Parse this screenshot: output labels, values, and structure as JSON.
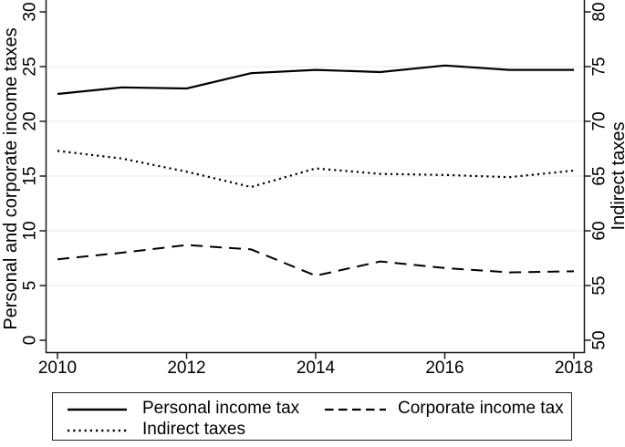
{
  "chart_data": {
    "type": "line",
    "x": [
      2010,
      2011,
      2012,
      2013,
      2014,
      2015,
      2016,
      2017,
      2018
    ],
    "series": [
      {
        "name": "Personal income tax",
        "axis": "left",
        "style": "solid",
        "values": [
          22.5,
          23.1,
          23.0,
          24.4,
          24.7,
          24.5,
          25.1,
          24.7,
          24.7
        ]
      },
      {
        "name": "Corporate income tax",
        "axis": "left",
        "style": "dashed",
        "values": [
          7.4,
          8.0,
          8.7,
          8.3,
          5.9,
          7.2,
          6.6,
          6.2,
          6.3
        ]
      },
      {
        "name": "Indirect taxes",
        "axis": "right",
        "style": "dotted",
        "values": [
          67.3,
          66.6,
          65.4,
          64.0,
          65.7,
          65.2,
          65.1,
          64.9,
          65.5
        ]
      }
    ],
    "left_axis": {
      "label": "Personal and corporate income taxes",
      "ticks": [
        0,
        5,
        10,
        15,
        20,
        25,
        30
      ],
      "range": [
        0,
        30
      ]
    },
    "right_axis": {
      "label": "Indirect taxes",
      "ticks": [
        50,
        55,
        60,
        65,
        70,
        75,
        80
      ],
      "range": [
        50,
        80
      ]
    },
    "x_axis": {
      "ticks": [
        2010,
        2012,
        2014,
        2016,
        2018
      ],
      "range": [
        2010,
        2018
      ]
    },
    "grid": true,
    "legend_position": "bottom",
    "colors": {
      "line": "#000000",
      "grid": "#e8e8e8",
      "background": "#ffffff"
    }
  }
}
